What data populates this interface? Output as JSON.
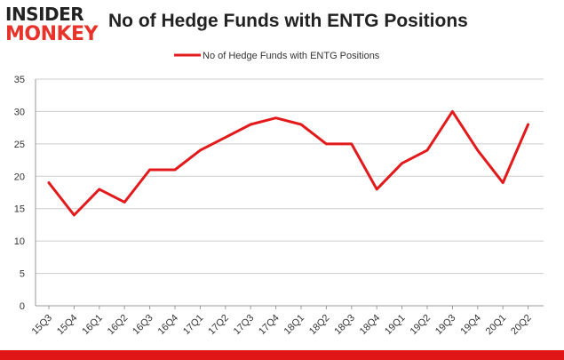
{
  "header": {
    "logo_top": "INSIDER",
    "logo_bottom": "MONKEY",
    "title": "No of Hedge Funds with ENTG Positions"
  },
  "colors": {
    "series": "#e31a1c",
    "grid": "#cccccc",
    "axis_text": "#333333",
    "bottom_bar": "#e01616"
  },
  "chart_data": {
    "type": "line",
    "title": "No of Hedge Funds with ENTG Positions",
    "xlabel": "",
    "ylabel": "",
    "categories": [
      "15Q3",
      "15Q4",
      "16Q1",
      "16Q2",
      "16Q3",
      "16Q4",
      "17Q1",
      "17Q2",
      "17Q3",
      "17Q4",
      "18Q1",
      "18Q2",
      "18Q3",
      "18Q4",
      "19Q1",
      "19Q2",
      "19Q3",
      "19Q4",
      "20Q1",
      "20Q2"
    ],
    "series": [
      {
        "name": "No of Hedge Funds with ENTG Positions",
        "values": [
          19,
          14,
          18,
          16,
          21,
          21,
          24,
          26,
          28,
          29,
          28,
          25,
          25,
          18,
          22,
          24,
          30,
          24,
          19,
          28
        ]
      }
    ],
    "ylim": [
      0,
      35
    ],
    "yticks": [
      0,
      5,
      10,
      15,
      20,
      25,
      30,
      35
    ],
    "grid": true,
    "legend": "top-center"
  }
}
